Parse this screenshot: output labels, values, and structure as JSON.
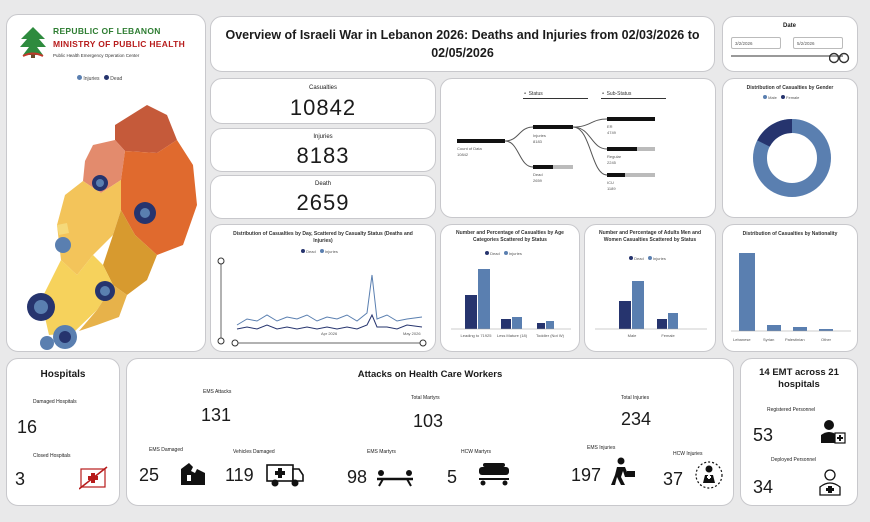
{
  "logo": {
    "line1": "REPUBLIC OF LEBANON",
    "line2": "MINISTRY OF PUBLIC HEALTH",
    "line3": "Public Health Emergency Operation Center"
  },
  "map_legend": {
    "items": [
      "Injuries",
      "Dead"
    ]
  },
  "title": "Overview of Israeli War in Lebanon 2026: Deaths and Injuries from 02/03/2026 to 02/05/2026",
  "date_filter": {
    "label": "Date",
    "start": "3/2/2026",
    "end": "5/2/2026"
  },
  "kpis": {
    "casualties": {
      "label": "Casualties",
      "value": "10842"
    },
    "injuries": {
      "label": "Injuries",
      "value": "8183"
    },
    "death": {
      "label": "Death",
      "value": "2659"
    }
  },
  "decomp": {
    "status_label": "Status",
    "substatus_label": "Sub-Status",
    "root_label": "Count of Data",
    "root_value": "10842",
    "injuries_label": "Injuries",
    "injuries_value": "8183",
    "dead_label": "Dead",
    "dead_value": "2659",
    "sub1_label": "ER",
    "sub1_value": "4749",
    "sub2_label": "Regular",
    "sub2_value": "2245",
    "sub3_label": "ICU",
    "sub3_value": "1189"
  },
  "gender_chart": {
    "title": "Distribution of Casualties by Gender",
    "legend": [
      "Male",
      "Female"
    ],
    "colors": {
      "male": "#5a7fb0",
      "female": "#26346e"
    }
  },
  "day_chart": {
    "title": "Distribution of Casualties by Day, Scattered by Casualty Status (Deaths and Injuries)",
    "legend": [
      "Dead",
      "Injuries"
    ],
    "x_start": "Apr 2026",
    "x_end": "May 2026"
  },
  "age_chart": {
    "title": "Number and Percentage of Casualties by Age Categories Scattered by Status",
    "legend": [
      "Dead",
      "Injuries"
    ],
    "categories": [
      "Leading to 71925",
      "Less Mature (18)",
      "Toddler (Not W)"
    ]
  },
  "adults_chart": {
    "title": "Number and Percentage of Adults Men and Women Casualties Scattered by Status",
    "legend": [
      "Dead",
      "Injuries"
    ],
    "categories": [
      "Male",
      "Female"
    ]
  },
  "nationality_chart": {
    "title": "Distribution of Casualties by Nationality",
    "categories": [
      "Lebanese",
      "Syrian",
      "Palestinian",
      "Other"
    ]
  },
  "hospitals": {
    "title": "Hospitals",
    "damaged_label": "Damaged Hospitals",
    "damaged_value": "16",
    "closed_label": "Closed Hospitals",
    "closed_value": "3"
  },
  "attacks": {
    "title": "Attacks on Health Care Workers",
    "ems_attacks_label": "EMS Attacks",
    "ems_attacks_value": "131",
    "total_martyrs_label": "Total Martyrs",
    "total_martyrs_value": "103",
    "total_injuries_label": "Total Injuries",
    "total_injuries_value": "234",
    "ems_damaged_label": "EMS Damaged",
    "ems_damaged_value": "25",
    "vehicles_damaged_label": "Vehicles Damaged",
    "vehicles_damaged_value": "119",
    "ems_martyrs_label": "EMS Martyrs",
    "ems_martyrs_value": "98",
    "hcw_martyrs_label": "HCW Martyrs",
    "hcw_martyrs_value": "5",
    "ems_injuries_label": "EMS Injuries",
    "ems_injuries_value": "197",
    "hcw_injuries_label": "HCW Injuries",
    "hcw_injuries_value": "37"
  },
  "emt": {
    "title": "14 EMT across 21 hospitals",
    "registered_label": "Registered Personnel",
    "registered_value": "53",
    "deployed_label": "Deployed Personnel",
    "deployed_value": "34"
  }
}
